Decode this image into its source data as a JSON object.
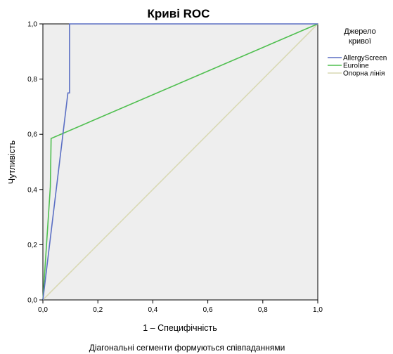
{
  "chart_data": {
    "type": "line",
    "title": "Криві ROC",
    "xlabel": "1 – Специфічність",
    "ylabel": "Чутливість",
    "footnote": "Діагональні сегменти формуються співпаданнями",
    "xlim": [
      0,
      1
    ],
    "ylim": [
      0,
      1
    ],
    "x_ticks": [
      "0,0",
      "0,2",
      "0,4",
      "0,6",
      "0,8",
      "1,0"
    ],
    "y_ticks": [
      "0,0",
      "0,2",
      "0,4",
      "0,6",
      "0,8",
      "1,0"
    ],
    "grid": false,
    "legend_title": "Джерело кривої",
    "legend_title_lines": [
      "Джерело",
      "кривої"
    ],
    "legend_position": "right",
    "series": [
      {
        "name": "AllergyScreen",
        "color": "#5b6fc4",
        "x": [
          0,
          0.091,
          0.091,
          0.097,
          0.097,
          1
        ],
        "y": [
          0,
          0.75,
          0.75,
          0.75,
          1,
          1
        ]
      },
      {
        "name": "Euroline",
        "color": "#4fbf4f",
        "x": [
          0,
          0.027,
          0.027,
          0.03,
          1
        ],
        "y": [
          0,
          0.41,
          0.41,
          0.585,
          1
        ]
      },
      {
        "name": "Опорна лінія",
        "color": "#d9d9b4",
        "x": [
          0,
          1
        ],
        "y": [
          0,
          1
        ]
      }
    ]
  }
}
